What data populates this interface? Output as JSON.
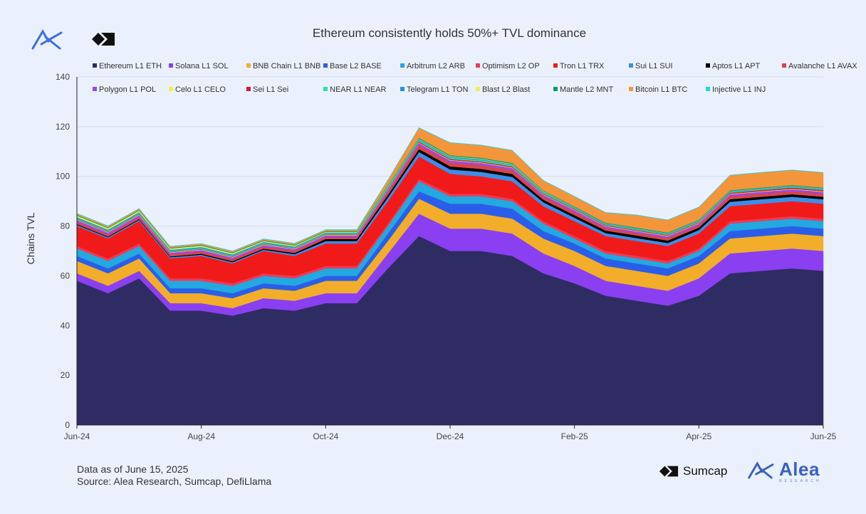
{
  "footnote": {
    "line1": "Data as of June 15, 2025",
    "line2": "Source: Alea Research, Sumcap, DefiLlama"
  },
  "brands": {
    "sumcap": "Sumcap",
    "alea": "Alea",
    "alea_sub": "RESEARCH"
  },
  "chart_data": {
    "type": "area",
    "stacked": true,
    "title": "Ethereum consistently holds 50%+ TVL dominance",
    "xlabel": "",
    "ylabel": "Chains TVL",
    "ylim": [
      0,
      140
    ],
    "yticks": [
      0,
      20,
      40,
      60,
      80,
      100,
      120,
      140
    ],
    "xticks": [
      "Jun-24",
      "Aug-24",
      "Oct-24",
      "Dec-24",
      "Feb-25",
      "Apr-25",
      "Jun-25"
    ],
    "grid": "horizontal",
    "legend_position": "top",
    "x": [
      "Jun-24",
      "Jun-24b",
      "Jul-24a",
      "Jul-24b",
      "Aug-24",
      "Aug-24b",
      "Sep-24a",
      "Sep-24b",
      "Oct-24",
      "Oct-24b",
      "Nov-24a",
      "Nov-24b",
      "Dec-24",
      "Dec-24b",
      "Jan-25a",
      "Jan-25b",
      "Feb-25",
      "Feb-25b",
      "Mar-25a",
      "Mar-25b",
      "Apr-25",
      "Apr-25b",
      "May-25a",
      "May-25b",
      "Jun-25"
    ],
    "series": [
      {
        "name": "Ethereum L1 ETH",
        "color": "#2e2c63",
        "values": [
          58,
          53,
          59,
          46,
          46,
          44,
          47,
          46,
          49,
          49,
          63,
          76,
          70,
          70,
          68,
          61,
          57,
          52,
          50,
          48,
          52,
          61,
          62,
          63,
          62
        ]
      },
      {
        "name": "Solana L1 SOL",
        "color": "#8a3ff0",
        "values": [
          3,
          3,
          3,
          3,
          3,
          3,
          4,
          4,
          4,
          4,
          6,
          9,
          9,
          9,
          9,
          8,
          7,
          6,
          6,
          6,
          7,
          8,
          8,
          8,
          8
        ]
      },
      {
        "name": "BNB Chain L1 BNB",
        "color": "#f2ae2a",
        "values": [
          5,
          5,
          5,
          4,
          4,
          4,
          4,
          4,
          5,
          5,
          5,
          6,
          6,
          6,
          6,
          6,
          6,
          6,
          6,
          6,
          6,
          6,
          6,
          6,
          6
        ]
      },
      {
        "name": "Base L2 BASE",
        "color": "#2b5ee8",
        "values": [
          2,
          2,
          2,
          2,
          2,
          2,
          2,
          2,
          2,
          2,
          3,
          3,
          4,
          4,
          4,
          3,
          3,
          3,
          3,
          3,
          3,
          3,
          3,
          3,
          3
        ]
      },
      {
        "name": "Arbitrum L2 ARB",
        "color": "#23a8e0",
        "values": [
          3,
          3,
          3,
          3,
          3,
          3,
          3,
          3,
          3,
          3,
          3,
          4,
          3,
          3,
          3,
          3,
          2,
          2,
          2,
          2,
          2,
          3,
          3,
          3,
          3
        ]
      },
      {
        "name": "Optimism L2 OP",
        "color": "#ee3a55",
        "values": [
          1,
          1,
          1,
          1,
          1,
          1,
          1,
          1,
          1,
          1,
          1,
          1,
          1,
          1,
          1,
          1,
          1,
          1,
          1,
          1,
          1,
          1,
          1,
          1,
          1
        ]
      },
      {
        "name": "Tron L1 TRX",
        "color": "#f01a1a",
        "values": [
          8,
          8,
          9,
          8,
          9,
          8,
          9,
          8,
          9,
          9,
          9,
          9,
          8,
          7,
          7,
          6,
          6,
          6,
          6,
          6,
          6,
          6,
          6,
          6,
          6
        ]
      },
      {
        "name": "Sui L1 SUI",
        "color": "#3c8ee8",
        "values": [
          0.5,
          0.5,
          0.5,
          0.5,
          0.5,
          0.5,
          0.5,
          0.7,
          1,
          1,
          1.5,
          1.8,
          1.8,
          1.8,
          1.8,
          1.6,
          1.4,
          1.2,
          1.2,
          1.2,
          1.4,
          1.8,
          1.8,
          1.8,
          1.8
        ]
      },
      {
        "name": "Aptos L1 APT",
        "color": "#000000",
        "values": [
          0.3,
          0.3,
          0.3,
          0.3,
          0.4,
          0.4,
          0.4,
          0.5,
          0.8,
          0.8,
          1,
          1.2,
          1.2,
          1.2,
          1.2,
          1,
          1,
          1,
          1,
          1,
          1,
          1,
          1,
          1,
          1
        ]
      },
      {
        "name": "Avalanche L1 AVAX",
        "color": "#d94545",
        "values": [
          0.8,
          0.8,
          0.8,
          0.8,
          0.8,
          0.8,
          0.8,
          0.8,
          0.8,
          0.8,
          1.2,
          1.5,
          1.5,
          1.5,
          1.5,
          1.2,
          1.2,
          1,
          1,
          1,
          1,
          1.2,
          1.2,
          1.2,
          1.2
        ]
      },
      {
        "name": "Polygon L1 POL",
        "color": "#9b47f2",
        "values": [
          0.8,
          0.8,
          0.8,
          0.7,
          0.7,
          0.7,
          0.7,
          0.7,
          0.7,
          0.7,
          0.8,
          0.9,
          0.9,
          0.9,
          0.9,
          0.8,
          0.8,
          0.7,
          0.7,
          0.7,
          0.7,
          0.8,
          0.8,
          0.8,
          0.8
        ]
      },
      {
        "name": "Celo L1 CELO",
        "color": "#f7f23a",
        "values": [
          0.2,
          0.2,
          0.2,
          0.2,
          0.2,
          0.2,
          0.2,
          0.2,
          0.2,
          0.2,
          0.2,
          0.2,
          0.2,
          0.2,
          0.2,
          0.2,
          0.2,
          0.2,
          0.2,
          0.2,
          0.2,
          0.2,
          0.2,
          0.2,
          0.2
        ]
      },
      {
        "name": "Sei L1 Sei",
        "color": "#c81e3a",
        "values": [
          0.2,
          0.2,
          0.2,
          0.2,
          0.2,
          0.2,
          0.2,
          0.2,
          0.2,
          0.2,
          0.3,
          0.4,
          0.4,
          0.4,
          0.4,
          0.3,
          0.3,
          0.3,
          0.3,
          0.3,
          0.3,
          0.4,
          0.5,
          0.5,
          0.5
        ]
      },
      {
        "name": "NEAR L1 NEAR",
        "color": "#2ee0a0",
        "values": [
          0.3,
          0.3,
          0.3,
          0.3,
          0.3,
          0.3,
          0.3,
          0.3,
          0.3,
          0.3,
          0.4,
          0.5,
          0.5,
          0.5,
          0.5,
          0.4,
          0.3,
          0.3,
          0.3,
          0.3,
          0.3,
          0.3,
          0.3,
          0.3,
          0.3
        ]
      },
      {
        "name": "Telegram L1 TON",
        "color": "#1f95dd",
        "values": [
          0.5,
          0.5,
          0.5,
          0.5,
          0.5,
          0.5,
          0.5,
          0.4,
          0.4,
          0.4,
          0.4,
          0.4,
          0.4,
          0.4,
          0.3,
          0.3,
          0.3,
          0.3,
          0.3,
          0.3,
          0.3,
          0.3,
          0.3,
          0.3,
          0.3
        ]
      },
      {
        "name": "Blast L2 Blast",
        "color": "#e8f25a",
        "values": [
          0.6,
          0.6,
          0.6,
          0.5,
          0.5,
          0.5,
          0.4,
          0.4,
          0.3,
          0.3,
          0.3,
          0.2,
          0.2,
          0.2,
          0.2,
          0.2,
          0.1,
          0.1,
          0.1,
          0.1,
          0.1,
          0.1,
          0.1,
          0.1,
          0.1
        ]
      },
      {
        "name": "Mantle L2 MNT",
        "color": "#0e9a6a",
        "values": [
          0.3,
          0.3,
          0.3,
          0.3,
          0.3,
          0.3,
          0.3,
          0.3,
          0.3,
          0.3,
          0.4,
          0.4,
          0.4,
          0.4,
          0.4,
          0.3,
          0.3,
          0.3,
          0.3,
          0.3,
          0.3,
          0.3,
          0.3,
          0.3,
          0.3
        ]
      },
      {
        "name": "Bitcoin L1 BTC",
        "color": "#f3953a",
        "values": [
          0.5,
          0.5,
          0.5,
          0.5,
          0.5,
          0.5,
          0.5,
          0.5,
          0.5,
          0.5,
          2,
          4,
          5,
          5,
          5,
          4,
          4,
          4,
          5,
          5,
          5,
          6,
          6,
          6,
          6
        ]
      },
      {
        "name": "Injective L1 INJ",
        "color": "#22d4e8",
        "values": [
          0.1,
          0.1,
          0.1,
          0.1,
          0.1,
          0.1,
          0.1,
          0.1,
          0.1,
          0.1,
          0.1,
          0.1,
          0.1,
          0.1,
          0.1,
          0.1,
          0.1,
          0.1,
          0.1,
          0.1,
          0.1,
          0.1,
          0.1,
          0.1,
          0.1
        ]
      }
    ]
  }
}
